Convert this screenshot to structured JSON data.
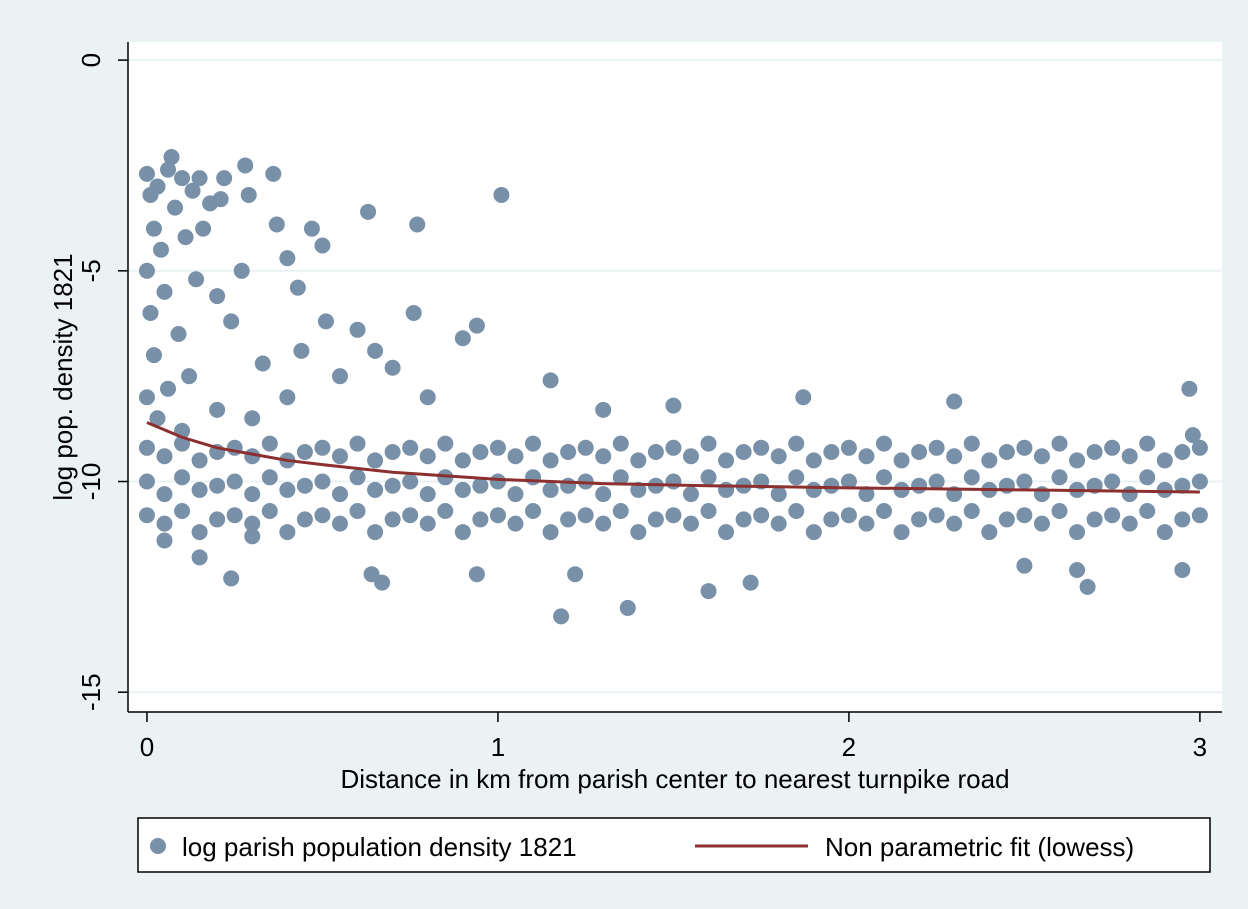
{
  "chart_data": {
    "type": "scatter",
    "xlabel": "Distance in km from parish center to nearest turnpike road",
    "ylabel": "log pop. density 1821",
    "xlim": [
      -0.054,
      3.063
    ],
    "ylim": [
      -15.47,
      0.43
    ],
    "xticks": [
      0,
      1,
      2,
      3
    ],
    "yticks": [
      0,
      -5,
      -10,
      -15
    ],
    "grid": true,
    "series": [
      {
        "name": "log parish population density 1821",
        "color": "#7890a8",
        "style": "markers",
        "x": [
          0,
          0.01,
          0.02,
          0,
          0.01,
          0.02,
          0,
          0.03,
          0.04,
          0.05,
          0.06,
          0.07,
          0.08,
          0.09,
          0.1,
          0.11,
          0.12,
          0.03,
          0.06,
          0.13,
          0.15,
          0.14,
          0.16,
          0.18,
          0.2,
          0.22,
          0.21,
          0.24,
          0.27,
          0.28,
          0.29,
          0.33,
          0.36,
          0.37,
          0.4,
          0.43,
          0.44,
          0.47,
          0.5,
          0.51,
          0.55,
          0.63,
          0.6,
          0.65,
          0.7,
          0.77,
          0.76,
          0.8,
          0.9,
          0.94,
          1.01,
          1.15,
          1.3,
          1.5,
          1.87,
          2.3,
          2.97,
          2.98,
          0.15,
          0.24,
          0.64,
          0.67,
          0.94,
          1.18,
          1.22,
          1.37,
          1.6,
          1.72,
          2.5,
          2.65,
          2.68,
          2.95,
          0.3,
          0.4,
          0.2,
          0.1,
          0.05,
          0.3,
          0,
          0.05,
          0.1,
          0.15,
          0.2,
          0.25,
          0.3,
          0.35,
          0.4,
          0.45,
          0.5,
          0.55,
          0.6,
          0.65,
          0.7,
          0.75,
          0.8,
          0.85,
          0.9,
          0.95,
          1,
          1.05,
          1.1,
          1.15,
          1.2,
          1.25,
          1.3,
          1.35,
          1.4,
          1.45,
          1.5,
          1.55,
          1.6,
          1.65,
          1.7,
          1.75,
          1.8,
          1.85,
          1.9,
          1.95,
          2,
          2.05,
          2.1,
          2.15,
          2.2,
          2.25,
          2.3,
          2.35,
          2.4,
          2.45,
          2.5,
          2.55,
          2.6,
          2.65,
          2.7,
          2.75,
          2.8,
          2.85,
          2.9,
          2.95,
          3,
          0,
          0.05,
          0.1,
          0.15,
          0.2,
          0.25,
          0.3,
          0.35,
          0.4,
          0.45,
          0.5,
          0.55,
          0.6,
          0.65,
          0.7,
          0.75,
          0.8,
          0.85,
          0.9,
          0.95,
          1,
          1.05,
          1.1,
          1.15,
          1.2,
          1.25,
          1.3,
          1.35,
          1.4,
          1.45,
          1.5,
          1.55,
          1.6,
          1.65,
          1.7,
          1.75,
          1.8,
          1.85,
          1.9,
          1.95,
          2,
          2.05,
          2.1,
          2.15,
          2.2,
          2.25,
          2.3,
          2.35,
          2.4,
          2.45,
          2.5,
          2.55,
          2.6,
          2.65,
          2.7,
          2.75,
          2.8,
          2.85,
          2.9,
          2.95,
          3,
          0,
          0.05,
          0.1,
          0.15,
          0.2,
          0.25,
          0.3,
          0.35,
          0.4,
          0.45,
          0.5,
          0.55,
          0.6,
          0.65,
          0.7,
          0.75,
          0.8,
          0.85,
          0.9,
          0.95,
          1,
          1.05,
          1.1,
          1.15,
          1.2,
          1.25,
          1.3,
          1.35,
          1.4,
          1.45,
          1.5,
          1.55,
          1.6,
          1.65,
          1.7,
          1.75,
          1.8,
          1.85,
          1.9,
          1.95,
          2,
          2.05,
          2.1,
          2.15,
          2.2,
          2.25,
          2.3,
          2.35,
          2.4,
          2.45,
          2.5,
          2.55,
          2.6,
          2.65,
          2.7,
          2.75,
          2.8,
          2.85,
          2.9,
          2.95,
          3
        ],
        "y": [
          -2.7,
          -3.2,
          -4,
          -5,
          -6,
          -7,
          -8,
          -3,
          -4.5,
          -5.5,
          -2.6,
          -2.3,
          -3.5,
          -6.5,
          -2.8,
          -4.2,
          -7.5,
          -8.5,
          -7.8,
          -3.1,
          -2.8,
          -5.2,
          -4,
          -3.4,
          -5.6,
          -2.8,
          -3.3,
          -6.2,
          -5,
          -2.5,
          -3.2,
          -7.2,
          -2.7,
          -3.9,
          -4.7,
          -5.4,
          -6.9,
          -4,
          -4.4,
          -6.2,
          -7.5,
          -3.6,
          -6.4,
          -6.9,
          -7.3,
          -3.9,
          -6,
          -8,
          -6.6,
          -6.3,
          -3.2,
          -7.6,
          -8.3,
          -8.2,
          -8,
          -8.1,
          -7.8,
          -8.9,
          -11.8,
          -12.3,
          -12.2,
          -12.4,
          -12.2,
          -13.2,
          -12.2,
          -13,
          -12.6,
          -12.4,
          -12,
          -12.1,
          -12.5,
          -12.1,
          -8.5,
          -8,
          -8.3,
          -8.8,
          -11.4,
          -11.3,
          -9.2,
          -9.4,
          -9.1,
          -9.5,
          -9.3,
          -9.2,
          -9.4,
          -9.1,
          -9.5,
          -9.3,
          -9.2,
          -9.4,
          -9.1,
          -9.5,
          -9.3,
          -9.2,
          -9.4,
          -9.1,
          -9.5,
          -9.3,
          -9.2,
          -9.4,
          -9.1,
          -9.5,
          -9.3,
          -9.2,
          -9.4,
          -9.1,
          -9.5,
          -9.3,
          -9.2,
          -9.4,
          -9.1,
          -9.5,
          -9.3,
          -9.2,
          -9.4,
          -9.1,
          -9.5,
          -9.3,
          -9.2,
          -9.4,
          -9.1,
          -9.5,
          -9.3,
          -9.2,
          -9.4,
          -9.1,
          -9.5,
          -9.3,
          -9.2,
          -9.4,
          -9.1,
          -9.5,
          -9.3,
          -9.2,
          -9.4,
          -9.1,
          -9.5,
          -9.3,
          -9.2,
          -10,
          -10.3,
          -9.9,
          -10.2,
          -10.1,
          -10,
          -10.3,
          -9.9,
          -10.2,
          -10.1,
          -10,
          -10.3,
          -9.9,
          -10.2,
          -10.1,
          -10,
          -10.3,
          -9.9,
          -10.2,
          -10.1,
          -10,
          -10.3,
          -9.9,
          -10.2,
          -10.1,
          -10,
          -10.3,
          -9.9,
          -10.2,
          -10.1,
          -10,
          -10.3,
          -9.9,
          -10.2,
          -10.1,
          -10,
          -10.3,
          -9.9,
          -10.2,
          -10.1,
          -10,
          -10.3,
          -9.9,
          -10.2,
          -10.1,
          -10,
          -10.3,
          -9.9,
          -10.2,
          -10.1,
          -10,
          -10.3,
          -9.9,
          -10.2,
          -10.1,
          -10,
          -10.3,
          -9.9,
          -10.2,
          -10.1,
          -10,
          -10.8,
          -11,
          -10.7,
          -11.2,
          -10.9,
          -10.8,
          -11,
          -10.7,
          -11.2,
          -10.9,
          -10.8,
          -11,
          -10.7,
          -11.2,
          -10.9,
          -10.8,
          -11,
          -10.7,
          -11.2,
          -10.9,
          -10.8,
          -11,
          -10.7,
          -11.2,
          -10.9,
          -10.8,
          -11,
          -10.7,
          -11.2,
          -10.9,
          -10.8,
          -11,
          -10.7,
          -11.2,
          -10.9,
          -10.8,
          -11,
          -10.7,
          -11.2,
          -10.9,
          -10.8,
          -11,
          -10.7,
          -11.2,
          -10.9,
          -10.8,
          -11,
          -10.7,
          -11.2,
          -10.9,
          -10.8,
          -11,
          -10.7,
          -11.2,
          -10.9,
          -10.8,
          -11,
          -10.7,
          -11.2,
          -10.9,
          -10.8
        ]
      },
      {
        "name": "Non parametric fit (lowess)",
        "color": "#8b2f2f",
        "style": "line",
        "x": [
          0,
          0.1,
          0.2,
          0.3,
          0.4,
          0.5,
          0.7,
          1,
          1.3,
          1.6,
          2,
          2.5,
          3
        ],
        "y": [
          -8.6,
          -8.95,
          -9.2,
          -9.35,
          -9.5,
          -9.6,
          -9.78,
          -9.95,
          -10.05,
          -10.1,
          -10.15,
          -10.2,
          -10.25
        ]
      }
    ]
  }
}
